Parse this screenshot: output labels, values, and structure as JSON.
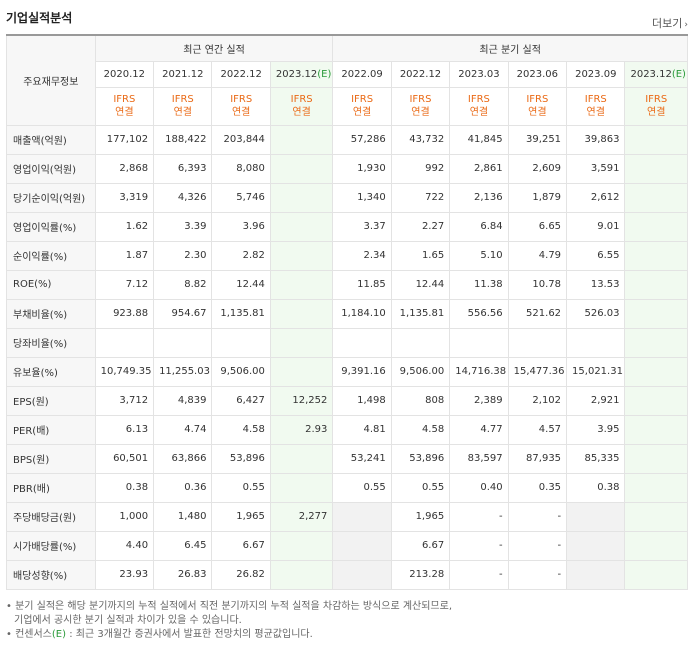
{
  "title": "기업실적분석",
  "more_label": "더보기",
  "header": {
    "label": "주요재무정보",
    "annual_group": "최근 연간 실적",
    "quarter_group": "최근 분기 실적",
    "ifrs_line1": "IFRS",
    "ifrs_line2": "연결",
    "estimate_tag": "(E)",
    "annual_periods": [
      "2020.12",
      "2021.12",
      "2022.12",
      "2023.12"
    ],
    "quarter_periods": [
      "2022.09",
      "2022.12",
      "2023.03",
      "2023.06",
      "2023.09",
      "2023.12"
    ]
  },
  "rows": [
    {
      "label": "매출액(억원)",
      "annual": [
        "177,102",
        "188,422",
        "203,844",
        ""
      ],
      "quarter": [
        "57,286",
        "43,732",
        "41,845",
        "39,251",
        "39,863",
        ""
      ]
    },
    {
      "label": "영업이익(억원)",
      "annual": [
        "2,868",
        "6,393",
        "8,080",
        ""
      ],
      "quarter": [
        "1,930",
        "992",
        "2,861",
        "2,609",
        "3,591",
        ""
      ]
    },
    {
      "label": "당기순이익(억원)",
      "annual": [
        "3,319",
        "4,326",
        "5,746",
        ""
      ],
      "quarter": [
        "1,340",
        "722",
        "2,136",
        "1,879",
        "2,612",
        ""
      ]
    },
    {
      "label": "영업이익률(%)",
      "annual": [
        "1.62",
        "3.39",
        "3.96",
        ""
      ],
      "quarter": [
        "3.37",
        "2.27",
        "6.84",
        "6.65",
        "9.01",
        ""
      ]
    },
    {
      "label": "순이익률(%)",
      "annual": [
        "1.87",
        "2.30",
        "2.82",
        ""
      ],
      "quarter": [
        "2.34",
        "1.65",
        "5.10",
        "4.79",
        "6.55",
        ""
      ]
    },
    {
      "label": "ROE(%)",
      "annual": [
        "7.12",
        "8.82",
        "12.44",
        ""
      ],
      "quarter": [
        "11.85",
        "12.44",
        "11.38",
        "10.78",
        "13.53",
        ""
      ]
    },
    {
      "label": "부채비율(%)",
      "annual": [
        "923.88",
        "954.67",
        "1,135.81",
        ""
      ],
      "quarter": [
        "1,184.10",
        "1,135.81",
        "556.56",
        "521.62",
        "526.03",
        ""
      ]
    },
    {
      "label": "당좌비율(%)",
      "annual": [
        "",
        "",
        "",
        ""
      ],
      "quarter": [
        "",
        "",
        "",
        "",
        "",
        ""
      ]
    },
    {
      "label": "유보율(%)",
      "annual": [
        "10,749.35",
        "11,255.03",
        "9,506.00",
        ""
      ],
      "quarter": [
        "9,391.16",
        "9,506.00",
        "14,716.38",
        "15,477.36",
        "15,021.31",
        ""
      ]
    },
    {
      "label": "EPS(원)",
      "annual": [
        "3,712",
        "4,839",
        "6,427",
        "12,252"
      ],
      "quarter": [
        "1,498",
        "808",
        "2,389",
        "2,102",
        "2,921",
        ""
      ]
    },
    {
      "label": "PER(배)",
      "annual": [
        "6.13",
        "4.74",
        "4.58",
        "2.93"
      ],
      "quarter": [
        "4.81",
        "4.58",
        "4.77",
        "4.57",
        "3.95",
        ""
      ]
    },
    {
      "label": "BPS(원)",
      "annual": [
        "60,501",
        "63,866",
        "53,896",
        ""
      ],
      "quarter": [
        "53,241",
        "53,896",
        "83,597",
        "87,935",
        "85,335",
        ""
      ]
    },
    {
      "label": "PBR(배)",
      "annual": [
        "0.38",
        "0.36",
        "0.55",
        ""
      ],
      "quarter": [
        "0.55",
        "0.55",
        "0.40",
        "0.35",
        "0.38",
        ""
      ]
    },
    {
      "label": "주당배당금(원)",
      "annual": [
        "1,000",
        "1,480",
        "1,965",
        "2,277"
      ],
      "quarter": [
        "",
        "1,965",
        "-",
        "-",
        "",
        ""
      ],
      "quarter_blank": [
        true,
        false,
        false,
        false,
        true,
        false
      ]
    },
    {
      "label": "시가배당률(%)",
      "annual": [
        "4.40",
        "6.45",
        "6.67",
        ""
      ],
      "quarter": [
        "",
        "6.67",
        "-",
        "-",
        "",
        ""
      ],
      "quarter_blank": [
        true,
        false,
        false,
        false,
        true,
        false
      ]
    },
    {
      "label": "배당성향(%)",
      "annual": [
        "23.93",
        "26.83",
        "26.82",
        ""
      ],
      "quarter": [
        "",
        "213.28",
        "-",
        "-",
        "",
        ""
      ],
      "quarter_blank": [
        true,
        false,
        false,
        false,
        true,
        false
      ]
    }
  ],
  "footnotes": {
    "line1": "분기 실적은 해당 분기까지의 누적 실적에서 직전 분기까지의 누적 실적을 차감하는 방식으로 계산되므로,",
    "line2": "기업에서 공시한 분기 실적과 차이가 있을 수 있습니다.",
    "line3_prefix": "컨센서스",
    "line3_tag": "(E)",
    "line3_rest": ": 최근 3개월간 증권사에서 발표한 전망치의 평균값입니다."
  }
}
